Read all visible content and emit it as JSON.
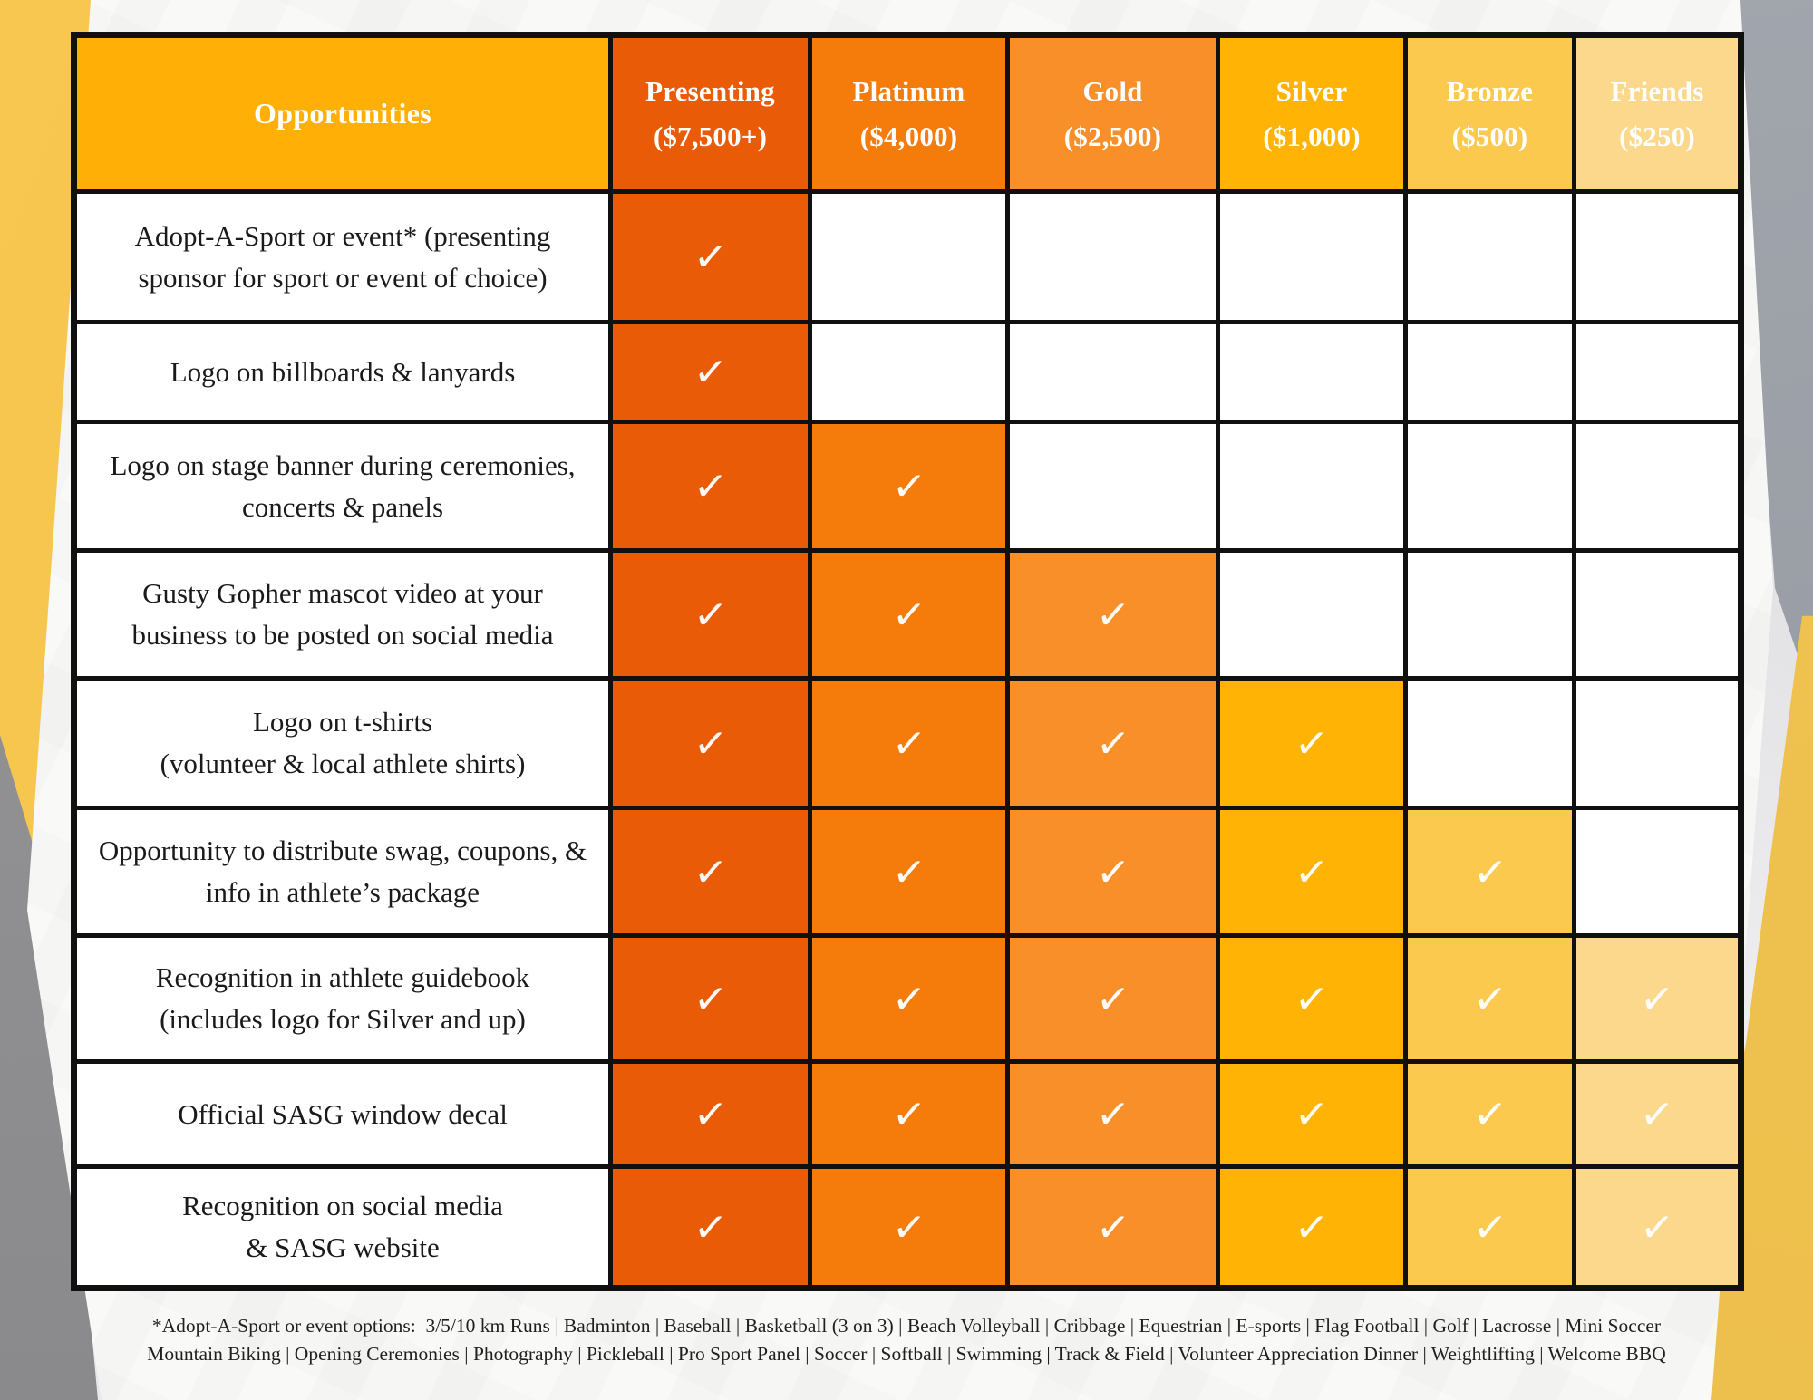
{
  "table": {
    "opportunities_label": "Opportunities",
    "opportunities_color": "#FFAF05",
    "check_glyph": "✓",
    "tiers": [
      {
        "name": "Presenting",
        "price": "($7,500+)",
        "color": "#E95B07"
      },
      {
        "name": "Platinum",
        "price": "($4,000)",
        "color": "#F57B0B"
      },
      {
        "name": "Gold",
        "price": "($2,500)",
        "color": "#F88F28"
      },
      {
        "name": "Silver",
        "price": "($1,000)",
        "color": "#FFB405"
      },
      {
        "name": "Bronze",
        "price": "($500)",
        "color": "#FBC94E"
      },
      {
        "name": "Friends",
        "price": "($250)",
        "color": "#FCD88C"
      }
    ],
    "rows": [
      {
        "label": "Adopt-A-Sport or event* (presenting sponsor for sport or event of choice)",
        "lines": [
          "Adopt-A-Sport or event* (presenting",
          "sponsor for sport or event of choice)"
        ],
        "checks": [
          true,
          false,
          false,
          false,
          false,
          false
        ]
      },
      {
        "label": "Logo on billboards & lanyards",
        "lines": [
          "Logo on billboards & lanyards"
        ],
        "checks": [
          true,
          false,
          false,
          false,
          false,
          false
        ]
      },
      {
        "label": "Logo on stage banner during ceremonies, concerts & panels",
        "lines": [
          "Logo on stage banner during ceremonies,",
          "concerts & panels"
        ],
        "checks": [
          true,
          true,
          false,
          false,
          false,
          false
        ]
      },
      {
        "label": "Gusty Gopher mascot video at your business to be posted on social media",
        "lines": [
          "Gusty Gopher mascot video at your",
          "business to be posted on social media"
        ],
        "checks": [
          true,
          true,
          true,
          false,
          false,
          false
        ]
      },
      {
        "label": "Logo on t-shirts (volunteer & local athlete shirts)",
        "lines": [
          "Logo on t-shirts",
          "(volunteer & local athlete shirts)"
        ],
        "checks": [
          true,
          true,
          true,
          true,
          false,
          false
        ]
      },
      {
        "label": "Opportunity to distribute swag, coupons, & info in athlete’s package",
        "lines": [
          "Opportunity to distribute swag, coupons, &",
          "info in athlete’s package"
        ],
        "checks": [
          true,
          true,
          true,
          true,
          true,
          false
        ]
      },
      {
        "label": "Recognition in athlete guidebook (includes logo for Silver and up)",
        "lines": [
          "Recognition in athlete guidebook",
          "(includes logo for Silver and up)"
        ],
        "checks": [
          true,
          true,
          true,
          true,
          true,
          true
        ]
      },
      {
        "label": "Official SASG window decal",
        "lines": [
          "Official SASG window decal"
        ],
        "checks": [
          true,
          true,
          true,
          true,
          true,
          true
        ]
      },
      {
        "label": "Recognition on social media & SASG website",
        "lines": [
          "Recognition on social media",
          "& SASG website"
        ],
        "checks": [
          true,
          true,
          true,
          true,
          true,
          true
        ]
      }
    ]
  },
  "footnote": {
    "line1": "*Adopt-A-Sport or event options:  3/5/10 km Runs | Badminton | Baseball | Basketball (3 on 3) | Beach Volleyball | Cribbage | Equestrian | E-sports | Flag Football | Golf | Lacrosse | Mini Soccer",
    "line2": "Mountain Biking | Opening Ceremonies | Photography | Pickleball | Pro Sport Panel | Soccer | Softball | Swimming | Track & Field | Volunteer Appreciation Dinner | Weightlifting | Welcome BBQ"
  },
  "colors": {
    "table_border": "#101010",
    "label_text": "#1a1a1a",
    "check": "#ffffff",
    "backdrop_white": "#f9f9f8",
    "background_gray": "#e7e7e9",
    "wedge_gold_left": "#f5c34c",
    "wedge_gold_right": "#eec04e",
    "wedge_gray_left": "#909092",
    "wedge_gray_right": "#9ba0a8"
  }
}
